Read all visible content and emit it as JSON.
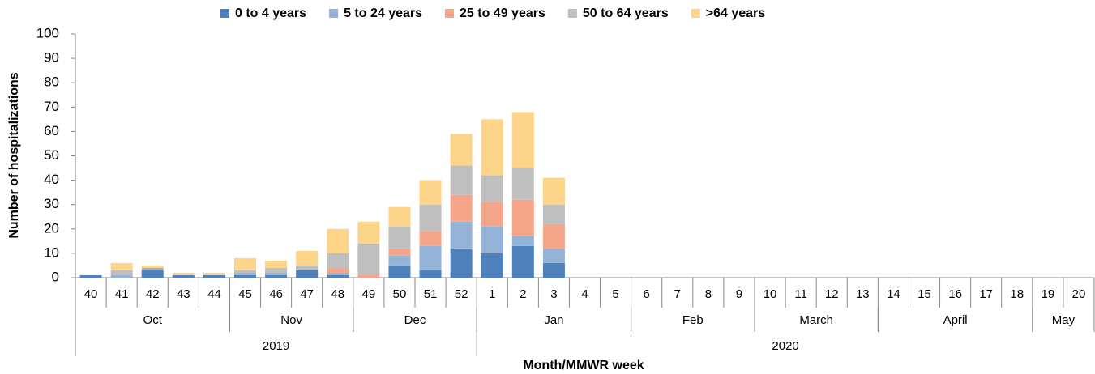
{
  "chart_data": {
    "type": "stacked_bar",
    "ylabel": "Number of hospitalizations",
    "xlabel": "Month/MMWR week",
    "categories": [
      "40",
      "41",
      "42",
      "43",
      "44",
      "45",
      "46",
      "47",
      "48",
      "49",
      "50",
      "51",
      "52",
      "1",
      "2",
      "3",
      "4",
      "5",
      "6",
      "7",
      "8",
      "9",
      "10",
      "11",
      "12",
      "13",
      "14",
      "15",
      "16",
      "17",
      "18",
      "19",
      "20"
    ],
    "months": [
      {
        "label": "Oct",
        "start": 0,
        "end": 4
      },
      {
        "label": "Nov",
        "start": 5,
        "end": 8
      },
      {
        "label": "Dec",
        "start": 9,
        "end": 12
      },
      {
        "label": "Jan",
        "start": 13,
        "end": 17
      },
      {
        "label": "Feb",
        "start": 18,
        "end": 21
      },
      {
        "label": "March",
        "start": 22,
        "end": 25
      },
      {
        "label": "April",
        "start": 26,
        "end": 30
      },
      {
        "label": "May",
        "start": 31,
        "end": 32
      }
    ],
    "years": [
      {
        "label": "2019",
        "start": 0,
        "end": 12
      },
      {
        "label": "2020",
        "start": 13,
        "end": 32
      }
    ],
    "series": [
      {
        "name": "0 to 4 years",
        "color": "#4f81bd",
        "values": [
          1,
          0,
          3,
          1,
          1,
          1,
          1,
          3,
          1,
          0,
          5,
          3,
          12,
          10,
          13,
          6,
          0,
          0,
          0,
          0,
          0,
          0,
          0,
          0,
          0,
          0,
          0,
          0,
          0,
          0,
          0,
          0,
          0
        ]
      },
      {
        "name": "5 to 24 years",
        "color": "#95b3d7",
        "values": [
          0,
          1,
          1,
          0,
          0,
          1,
          1,
          0,
          1,
          0,
          4,
          10,
          11,
          11,
          4,
          6,
          0,
          0,
          0,
          0,
          0,
          0,
          0,
          0,
          0,
          0,
          0,
          0,
          0,
          0,
          0,
          0,
          0
        ]
      },
      {
        "name": "25 to 49 years",
        "color": "#f4a58a",
        "values": [
          0,
          0,
          0,
          0,
          0,
          0,
          0,
          0,
          2,
          1,
          3,
          6,
          11,
          10,
          15,
          10,
          0,
          0,
          0,
          0,
          0,
          0,
          0,
          0,
          0,
          0,
          0,
          0,
          0,
          0,
          0,
          0,
          0
        ]
      },
      {
        "name": "50 to 64 years",
        "color": "#bfbfbf",
        "values": [
          0,
          2,
          0,
          0,
          0,
          1,
          2,
          2,
          6,
          13,
          9,
          11,
          12,
          11,
          13,
          8,
          0,
          0,
          0,
          0,
          0,
          0,
          0,
          0,
          0,
          0,
          0,
          0,
          0,
          0,
          0,
          0,
          0
        ]
      },
      {
        "name": ">64 years",
        "color": "#fdd58a",
        "values": [
          0,
          3,
          1,
          1,
          1,
          5,
          3,
          6,
          10,
          9,
          8,
          10,
          13,
          23,
          23,
          11,
          0,
          0,
          0,
          0,
          0,
          0,
          0,
          0,
          0,
          0,
          0,
          0,
          0,
          0,
          0,
          0,
          0
        ]
      }
    ],
    "ylim": [
      0,
      100
    ],
    "yticks": [
      0,
      10,
      20,
      30,
      40,
      50,
      60,
      70,
      80,
      90,
      100
    ],
    "legend": "top"
  }
}
